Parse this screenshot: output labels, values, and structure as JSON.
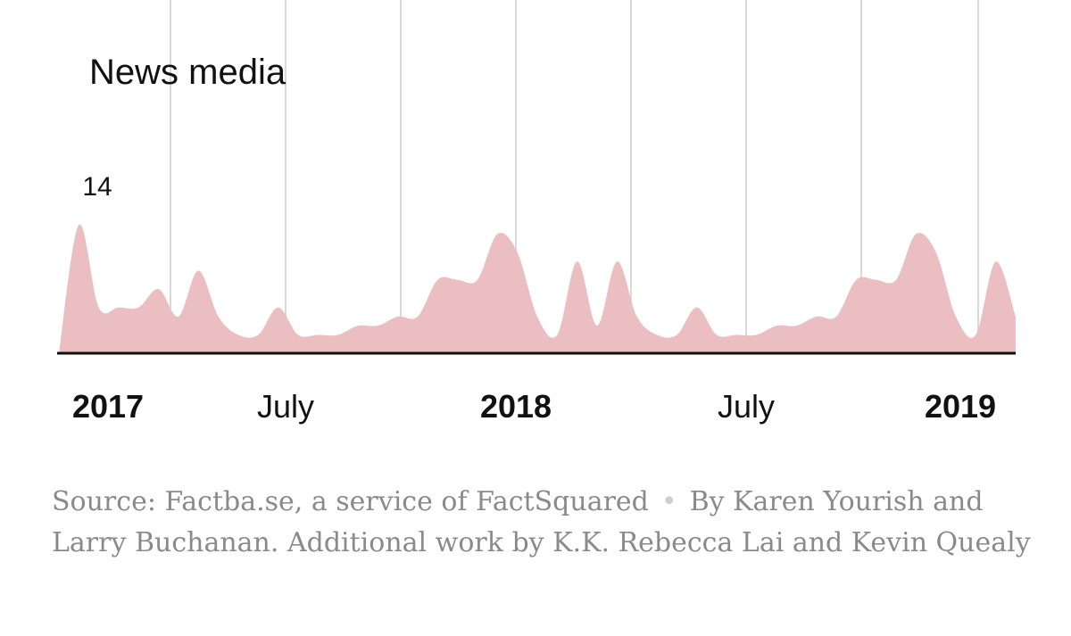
{
  "chart_data": {
    "type": "area",
    "title": "News media",
    "x_unit": "month",
    "x_start": "2017-01",
    "x_end": "2019-01",
    "x": [
      "2017-01",
      "2017-01",
      "2017-02",
      "2017-02",
      "2017-03",
      "2017-03",
      "2017-04",
      "2017-04",
      "2017-05",
      "2017-05",
      "2017-06",
      "2017-07",
      "2017-07",
      "2017-08",
      "2017-08",
      "2017-09",
      "2017-09",
      "2017-10",
      "2017-10",
      "2017-11",
      "2017-11",
      "2017-12",
      "2017-12",
      "2018-01",
      "2018-01",
      "2018-02",
      "2018-02",
      "2018-03",
      "2018-03",
      "2018-04",
      "2018-04",
      "2018-05",
      "2018-05",
      "2018-06",
      "2018-06",
      "2018-07",
      "2018-07",
      "2018-08",
      "2018-08",
      "2018-09",
      "2018-09",
      "2018-10",
      "2018-10",
      "2018-11",
      "2018-11",
      "2018-12",
      "2018-12",
      "2019-01",
      "2019-01"
    ],
    "values": [
      0,
      14,
      5,
      5,
      5,
      7,
      4,
      9,
      4,
      2,
      2,
      5,
      2,
      2,
      2,
      3,
      3,
      4,
      4,
      8,
      8,
      8,
      13,
      11,
      4,
      2,
      10,
      3,
      10,
      4,
      2,
      2,
      5,
      2,
      2,
      2,
      3,
      3,
      4,
      4,
      8,
      8,
      8,
      13,
      11,
      4,
      2,
      10,
      4
    ],
    "annotations": [
      {
        "text": "14"
      }
    ],
    "x_ticks": [
      {
        "label": "2017",
        "bold": true
      },
      {
        "label": "July",
        "bold": false
      },
      {
        "label": "2018",
        "bold": true
      },
      {
        "label": "July",
        "bold": false
      },
      {
        "label": "2019",
        "bold": true
      }
    ],
    "grid": "vertical",
    "colors": {
      "area": "#ebbfc2",
      "grid": "#d9d9d9",
      "baseline": "#111111"
    }
  },
  "footer": {
    "source": "Source: Factba.se, a service of FactSquared",
    "separator": "•",
    "credit": "By Karen Yourish and Larry Buchanan. Additional work by K.K. Rebecca Lai and Kevin Quealy"
  }
}
